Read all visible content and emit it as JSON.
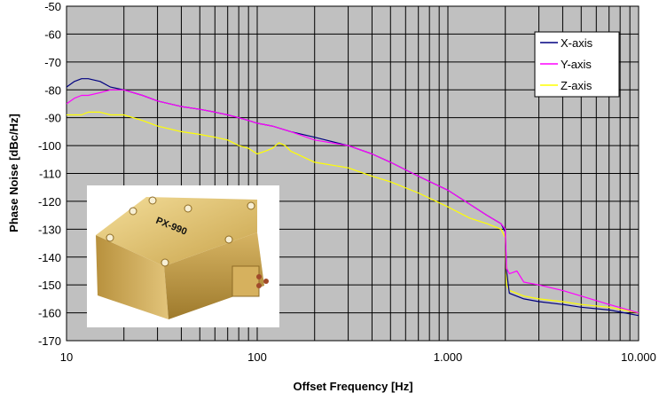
{
  "chart_data": {
    "type": "line",
    "title": "",
    "xlabel": "Offset Frequency [Hz]",
    "ylabel": "Phase Noise [dBc/Hz]",
    "xscale": "log",
    "xlim": [
      10,
      10000
    ],
    "ylim": [
      -170,
      -50
    ],
    "grid": true,
    "legend_position": "top-right",
    "x_tick_labels": [
      "10",
      "100",
      "1.000",
      "10.000"
    ],
    "x_tick_values": [
      10,
      100,
      1000,
      10000
    ],
    "y_ticks": [
      -50,
      -60,
      -70,
      -80,
      -90,
      -100,
      -110,
      -120,
      -130,
      -140,
      -150,
      -160,
      -170
    ],
    "series": [
      {
        "name": "X-axis",
        "color": "#000080",
        "x": [
          10,
          11,
          12,
          13,
          15,
          17,
          20,
          25,
          30,
          40,
          50,
          60,
          70,
          80,
          90,
          100,
          120,
          150,
          200,
          300,
          400,
          500,
          700,
          1000,
          1300,
          1600,
          1900,
          2000,
          2030,
          2100,
          2500,
          3000,
          4000,
          5000,
          7000,
          10000
        ],
        "y": [
          -79,
          -77,
          -76,
          -76,
          -77,
          -79,
          -80,
          -82,
          -84,
          -86,
          -87,
          -88,
          -89,
          -90,
          -91,
          -92,
          -93,
          -95,
          -97,
          -100,
          -103,
          -106,
          -111,
          -116,
          -121,
          -125,
          -128,
          -131,
          -145,
          -153,
          -155,
          -156,
          -157,
          -158,
          -159,
          -161
        ]
      },
      {
        "name": "Y-axis",
        "color": "#ff00ff",
        "x": [
          10,
          11,
          12,
          13,
          15,
          17,
          20,
          25,
          30,
          40,
          50,
          60,
          70,
          80,
          90,
          100,
          120,
          150,
          200,
          300,
          400,
          500,
          700,
          1000,
          1300,
          1600,
          1900,
          2000,
          2030,
          2100,
          2300,
          2500,
          3000,
          4000,
          5000,
          7000,
          10000
        ],
        "y": [
          -85,
          -83,
          -82,
          -82,
          -81,
          -80,
          -80,
          -82,
          -84,
          -86,
          -87,
          -88,
          -89,
          -90,
          -91,
          -92,
          -93,
          -95,
          -98,
          -100,
          -103,
          -106,
          -111,
          -116,
          -121,
          -125,
          -128,
          -130,
          -144,
          -146,
          -145,
          -149,
          -150,
          -152,
          -154,
          -157,
          -160
        ]
      },
      {
        "name": "Z-axis",
        "color": "#ffff00",
        "x": [
          10,
          11,
          12,
          13,
          15,
          17,
          20,
          25,
          30,
          40,
          50,
          60,
          70,
          80,
          90,
          100,
          110,
          120,
          130,
          140,
          150,
          200,
          300,
          400,
          500,
          700,
          1000,
          1300,
          1600,
          1900,
          2000,
          2030,
          2100,
          2500,
          3000,
          4000,
          5000,
          7000,
          10000
        ],
        "y": [
          -89,
          -89,
          -89,
          -88,
          -88,
          -89,
          -89,
          -91,
          -93,
          -95,
          -96,
          -97,
          -98,
          -100,
          -101,
          -103,
          -102,
          -101,
          -99,
          -100,
          -102,
          -106,
          -108,
          -111,
          -113,
          -117,
          -122,
          -126,
          -128,
          -130,
          -133,
          -150,
          -152,
          -154,
          -155,
          -156,
          -157,
          -158,
          -160
        ]
      }
    ]
  },
  "inset_photo": {
    "device_label": "PX-990"
  }
}
